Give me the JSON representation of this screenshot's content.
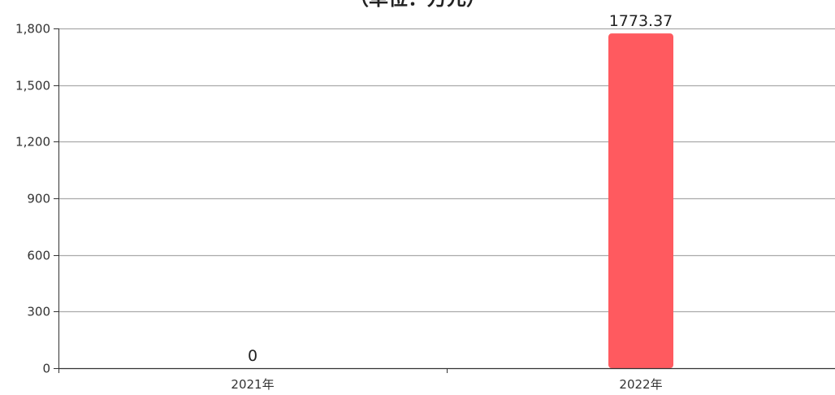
{
  "chart_data": {
    "type": "bar",
    "title": "（单位：万元）",
    "categories": [
      "2021年",
      "2022年"
    ],
    "values": [
      0,
      1773.37
    ],
    "value_labels": [
      "0",
      "1773.37"
    ],
    "ylim": [
      0,
      1800
    ],
    "yticks": [
      0,
      300,
      600,
      900,
      1200,
      1500,
      1800
    ],
    "ytick_labels": [
      "0",
      "300",
      "600",
      "900",
      "1,200",
      "1,500",
      "1,800"
    ],
    "xlabel": "",
    "ylabel": "",
    "grid": true,
    "bar_color": "#ff5a5f",
    "grid_color": "#aaaaaa",
    "axis_color": "#333333"
  }
}
